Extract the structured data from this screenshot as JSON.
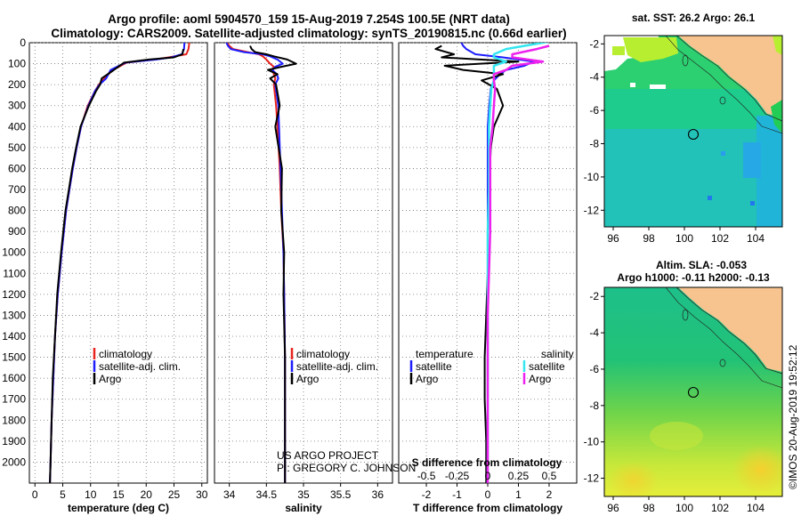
{
  "header": {
    "title1": "Argo profile: aoml 5904570_159 15-Aug-2019 7.254S 100.5E (NRT data)",
    "title2": "Climatology: CARS2009. Satellite-adjusted climatology: synTS_20190815.nc (0.66d earlier)"
  },
  "colors": {
    "climatology": "#e8231d",
    "satellite": "#1d1dff",
    "argo": "#000000",
    "cyan": "#33e6f0",
    "magenta": "#ee22ee",
    "land": "#f7c38f"
  },
  "chart_data": [
    {
      "id": "temperature",
      "type": "line",
      "title": "",
      "xlabel": "temperature (deg C)",
      "ylabel": "",
      "xlim": [
        -1,
        31
      ],
      "ylim": [
        2100,
        0
      ],
      "xticks": [
        "0",
        "5",
        "10",
        "15",
        "20",
        "25",
        "30"
      ],
      "xtick_values": [
        0,
        5,
        10,
        15,
        20,
        25,
        30
      ],
      "yticks": [
        "0",
        "100",
        "200",
        "300",
        "400",
        "500",
        "600",
        "700",
        "800",
        "900",
        "1000",
        "1100",
        "1200",
        "1300",
        "1400",
        "1500",
        "1600",
        "1700",
        "1800",
        "1900",
        "2000"
      ],
      "ytick_values": [
        0,
        100,
        200,
        300,
        400,
        500,
        600,
        700,
        800,
        900,
        1000,
        1100,
        1200,
        1300,
        1400,
        1500,
        1600,
        1700,
        1800,
        1900,
        2000
      ],
      "depth": [
        -10,
        30,
        55,
        70,
        80,
        95,
        130,
        170,
        200,
        230,
        300,
        400,
        500,
        600,
        700,
        800,
        900,
        1000,
        1200,
        1400,
        1600,
        1800,
        2000,
        2100
      ],
      "series": [
        {
          "name": "climatology",
          "color": "#e8231d",
          "values": [
            27.8,
            27.6,
            27.2,
            24.0,
            21.5,
            16.5,
            14.0,
            12.5,
            11.5,
            10.8,
            9.5,
            8.3,
            7.5,
            6.8,
            6.2,
            5.6,
            5.2,
            4.8,
            4.1,
            3.6,
            3.3,
            3.0,
            2.8,
            2.7
          ]
        },
        {
          "name": "satellite-adj. clim.",
          "color": "#1d1dff",
          "values": [
            26.9,
            26.8,
            26.4,
            24.5,
            21.8,
            16.3,
            13.6,
            12.8,
            11.6,
            10.8,
            9.6,
            8.3,
            7.5,
            6.8,
            6.2,
            5.6,
            5.2,
            4.8,
            4.1,
            3.6,
            3.3,
            3.0,
            2.8,
            2.7
          ]
        },
        {
          "name": "Argo",
          "color": "#000000",
          "values": [
            null,
            26.7,
            26.5,
            25.0,
            20.5,
            16.0,
            14.2,
            12.0,
            11.7,
            11.0,
            9.7,
            8.2,
            7.4,
            6.7,
            6.1,
            5.5,
            5.1,
            4.7,
            4.0,
            3.6,
            3.2,
            3.0,
            2.8,
            2.7
          ]
        }
      ],
      "legend": [
        "climatology",
        "satellite-adj. clim.",
        "Argo"
      ],
      "legend_position": "lower-right"
    },
    {
      "id": "salinity",
      "type": "line",
      "xlabel": "salinity",
      "xlim": [
        33.8,
        36.2
      ],
      "ylim": [
        2100,
        0
      ],
      "xticks": [
        "34",
        "34.5",
        "35",
        "35.5",
        "36"
      ],
      "xtick_values": [
        34,
        34.5,
        35,
        35.5,
        36
      ],
      "depth": [
        -10,
        15,
        30,
        45,
        55,
        65,
        80,
        100,
        115,
        130,
        150,
        170,
        200,
        300,
        400,
        600,
        800,
        1000,
        1200,
        1500,
        2000,
        2100
      ],
      "series": [
        {
          "name": "climatology",
          "color": "#e8231d",
          "values": [
            33.95,
            34.0,
            34.05,
            34.25,
            34.4,
            34.45,
            34.5,
            34.55,
            34.6,
            34.58,
            34.6,
            34.62,
            34.6,
            34.63,
            34.65,
            34.68,
            34.7,
            34.73,
            34.74,
            34.75,
            34.75,
            34.75
          ]
        },
        {
          "name": "satellite-adj. clim.",
          "color": "#1d1dff",
          "values": [
            33.95,
            33.98,
            34.02,
            34.2,
            34.45,
            34.55,
            34.65,
            34.72,
            34.62,
            34.58,
            34.64,
            34.66,
            34.62,
            34.66,
            34.67,
            34.69,
            34.71,
            34.73,
            34.74,
            34.75,
            34.75,
            34.75
          ]
        },
        {
          "name": "Argo",
          "color": "#000000",
          "values": [
            null,
            34.28,
            34.3,
            34.35,
            34.5,
            34.6,
            34.78,
            34.9,
            34.7,
            34.52,
            34.65,
            34.55,
            34.63,
            34.68,
            34.62,
            34.71,
            34.7,
            34.74,
            34.73,
            34.75,
            34.75,
            34.75
          ]
        }
      ],
      "legend": [
        "climatology",
        "satellite-adj. clim.",
        "Argo"
      ],
      "legend_position": "lower-right",
      "annotations": [
        "US ARGO PROJECT",
        "PI: GREGORY C. JOHNSON"
      ]
    },
    {
      "id": "difference",
      "type": "line",
      "xlabel": "T difference from climatology",
      "xlabel_top": "S difference from climatology",
      "xlim": [
        -2.9,
        2.9
      ],
      "ylim": [
        2100,
        0
      ],
      "xticks": [
        "-2",
        "-1",
        "0",
        "1",
        "2"
      ],
      "xtick_values": [
        -2,
        -1,
        0,
        1,
        2
      ],
      "xticks_top": [
        "-0.5",
        "-0.25",
        "0",
        "0.25",
        "0.5"
      ],
      "xtick_top_values": [
        -0.5,
        -0.25,
        0,
        0.25,
        0.5
      ],
      "depth": [
        -10,
        15,
        30,
        55,
        70,
        90,
        110,
        130,
        150,
        180,
        220,
        300,
        400,
        500,
        700,
        900,
        1100,
        1300,
        1500,
        1700,
        1900,
        2100
      ],
      "series": [
        {
          "name": "temperature satellite",
          "color": "#1d1dff",
          "values": [
            -0.9,
            -0.8,
            -0.7,
            -0.4,
            0.5,
            1.5,
            1.2,
            0.6,
            0.4,
            0.2,
            0.1,
            0.05,
            0.0,
            0.0,
            0.0,
            0.0,
            0.0,
            0.0,
            0.0,
            0.0,
            0.0,
            0.0
          ]
        },
        {
          "name": "temperature Argo",
          "color": "#000000",
          "values": [
            null,
            -1.5,
            -1.7,
            -1.1,
            -1.5,
            1.0,
            -1.4,
            -0.8,
            0.5,
            -0.2,
            0.3,
            0.5,
            0.2,
            0.1,
            0.05,
            0.0,
            0.0,
            -0.05,
            -0.1,
            -0.1,
            -0.05,
            -0.05
          ]
        },
        {
          "name": "salinity satellite",
          "color": "#33e6f0",
          "values": [
            0.55,
            0.3,
            0.15,
            0.05,
            0.05,
            0.15,
            0.05,
            0.05,
            0.05,
            0.05,
            0.03,
            0.02,
            0.01,
            0.01,
            0.01,
            0.0,
            0.0,
            0.0,
            0.0,
            0.0,
            0.0,
            0.0
          ]
        },
        {
          "name": "salinity Argo",
          "color": "#ee22ee",
          "values": [
            null,
            0.5,
            0.4,
            0.2,
            0.2,
            0.45,
            0.2,
            0.15,
            0.05,
            0.05,
            0.06,
            0.05,
            0.04,
            0.02,
            0.02,
            0.02,
            0.01,
            0.0,
            0.0,
            0.0,
            0.0,
            0.0
          ]
        }
      ],
      "legend_left_title": "temperature",
      "legend_right_title": "salinity",
      "legend_left": [
        "satellite",
        "Argo"
      ],
      "legend_right": [
        "satellite",
        "Argo"
      ],
      "legend_position": "lower-center"
    },
    {
      "id": "sst_map",
      "type": "heatmap",
      "title": "sat. SST: 26.2 Argo: 26.1",
      "xlim": [
        95.5,
        105.5
      ],
      "ylim": [
        -13,
        -1.5
      ],
      "xticks": [
        "96",
        "98",
        "100",
        "102",
        "104"
      ],
      "xtick_values": [
        96,
        98,
        100,
        102,
        104
      ],
      "yticks": [
        "-2",
        "-4",
        "-6",
        "-8",
        "-10",
        "-12"
      ],
      "ytick_values": [
        -2,
        -4,
        -6,
        -8,
        -10,
        -12
      ],
      "float_position": {
        "lon": 100.5,
        "lat": -7.254
      }
    },
    {
      "id": "sla_map",
      "type": "heatmap",
      "title": "Altim. SLA: -0.053",
      "subtitle": "Argo h1000: -0.11 h2000: -0.13",
      "xlim": [
        95.5,
        105.5
      ],
      "ylim": [
        -13,
        -1.5
      ],
      "xticks": [
        "96",
        "98",
        "100",
        "102",
        "104"
      ],
      "xtick_values": [
        96,
        98,
        100,
        102,
        104
      ],
      "yticks": [
        "-2",
        "-4",
        "-6",
        "-8",
        "-10",
        "-12"
      ],
      "ytick_values": [
        -2,
        -4,
        -6,
        -8,
        -10,
        -12
      ],
      "float_position": {
        "lon": 100.5,
        "lat": -7.254
      }
    }
  ],
  "credit": "©IMOS 20-Aug-2019 19:52:12"
}
